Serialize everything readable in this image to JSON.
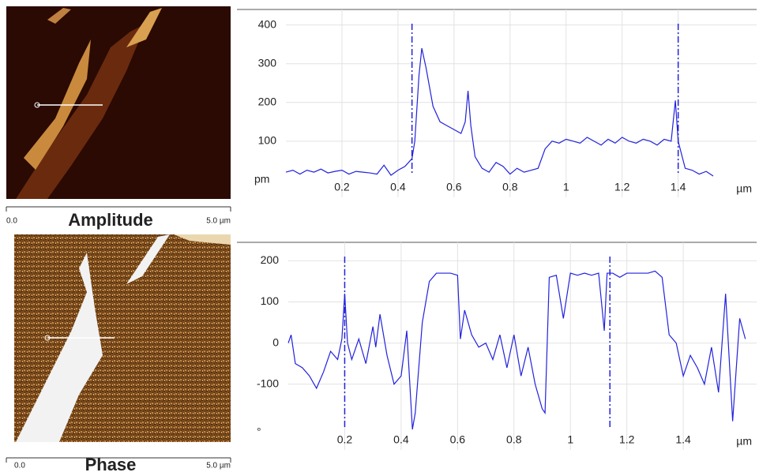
{
  "chart_data": [
    {
      "type": "line",
      "y_label": "pm",
      "x_label": "µm",
      "color": "#2222dd",
      "grid": true,
      "xlim": [
        0,
        1.68
      ],
      "ylim": [
        -45,
        440
      ],
      "xticks": [
        0.2,
        0.4,
        0.6,
        0.8,
        1,
        1.2,
        1.4
      ],
      "yticks": [
        100,
        200,
        300,
        400
      ],
      "cursors": [
        0.45,
        1.4
      ],
      "x": [
        0,
        0.025,
        0.05,
        0.075,
        0.1,
        0.125,
        0.15,
        0.175,
        0.2,
        0.225,
        0.25,
        0.275,
        0.3,
        0.325,
        0.35,
        0.375,
        0.4,
        0.425,
        0.45,
        0.46,
        0.475,
        0.485,
        0.5,
        0.525,
        0.55,
        0.575,
        0.6,
        0.625,
        0.64,
        0.65,
        0.66,
        0.675,
        0.7,
        0.725,
        0.75,
        0.775,
        0.8,
        0.825,
        0.85,
        0.875,
        0.9,
        0.925,
        0.95,
        0.975,
        1.0,
        1.025,
        1.05,
        1.075,
        1.1,
        1.125,
        1.15,
        1.175,
        1.2,
        1.225,
        1.25,
        1.275,
        1.3,
        1.325,
        1.35,
        1.375,
        1.39,
        1.4,
        1.425,
        1.45,
        1.475,
        1.5,
        1.525
      ],
      "values": [
        20,
        25,
        15,
        25,
        20,
        28,
        18,
        22,
        25,
        15,
        22,
        20,
        18,
        15,
        38,
        12,
        25,
        35,
        55,
        100,
        270,
        340,
        290,
        190,
        150,
        140,
        130,
        120,
        150,
        230,
        140,
        60,
        30,
        20,
        45,
        35,
        15,
        30,
        20,
        25,
        30,
        80,
        100,
        95,
        105,
        100,
        95,
        110,
        100,
        90,
        105,
        95,
        110,
        100,
        95,
        105,
        100,
        90,
        105,
        100,
        205,
        100,
        30,
        25,
        15,
        22,
        10
      ]
    },
    {
      "type": "line",
      "y_label": "°",
      "x_label": "µm",
      "color": "#2222dd",
      "grid": true,
      "xlim": [
        0,
        1.66
      ],
      "ylim": [
        -260,
        245
      ],
      "xticks": [
        0.2,
        0.4,
        0.6,
        0.8,
        1,
        1.2,
        1.4
      ],
      "yticks": [
        -100,
        0,
        100,
        200
      ],
      "cursors": [
        0.2,
        1.14
      ],
      "x": [
        0,
        0.01,
        0.025,
        0.05,
        0.075,
        0.1,
        0.125,
        0.15,
        0.175,
        0.19,
        0.2,
        0.21,
        0.225,
        0.25,
        0.275,
        0.3,
        0.31,
        0.325,
        0.35,
        0.375,
        0.4,
        0.42,
        0.44,
        0.45,
        0.475,
        0.5,
        0.525,
        0.55,
        0.575,
        0.6,
        0.61,
        0.625,
        0.65,
        0.675,
        0.7,
        0.725,
        0.75,
        0.775,
        0.8,
        0.825,
        0.85,
        0.875,
        0.9,
        0.91,
        0.925,
        0.95,
        0.975,
        1.0,
        1.025,
        1.05,
        1.075,
        1.1,
        1.12,
        1.13,
        1.15,
        1.175,
        1.2,
        1.225,
        1.25,
        1.275,
        1.3,
        1.325,
        1.35,
        1.375,
        1.4,
        1.425,
        1.45,
        1.475,
        1.5,
        1.525,
        1.55,
        1.575,
        1.6,
        1.62
      ],
      "values": [
        0,
        20,
        -50,
        -60,
        -80,
        -110,
        -70,
        -20,
        -40,
        10,
        120,
        0,
        -40,
        10,
        -50,
        40,
        -10,
        70,
        -30,
        -100,
        -80,
        30,
        -210,
        -170,
        50,
        150,
        170,
        170,
        170,
        165,
        10,
        80,
        20,
        -10,
        0,
        -40,
        20,
        -60,
        20,
        -80,
        -10,
        -100,
        -160,
        -170,
        160,
        165,
        60,
        170,
        165,
        170,
        165,
        170,
        30,
        170,
        170,
        160,
        170,
        170,
        170,
        170,
        175,
        160,
        20,
        0,
        -80,
        -30,
        -60,
        -100,
        -10,
        -120,
        120,
        -190,
        60,
        10
      ]
    }
  ],
  "images": [
    {
      "label": "Amplitude",
      "scale_start": "0.0",
      "scale_end": "5.0 µm"
    },
    {
      "label": "Phase",
      "scale_start": "0.0",
      "scale_end": "5.0 µm"
    }
  ]
}
